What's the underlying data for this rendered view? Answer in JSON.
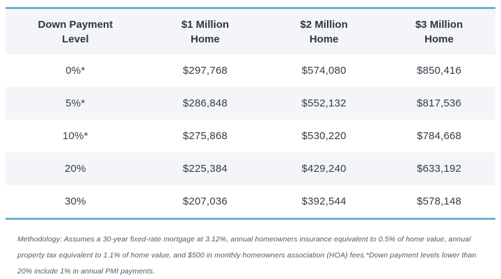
{
  "colors": {
    "accent_line": "#68b1d2",
    "header_background": "#f4f5f8",
    "stripe_background": "#f4f5f8",
    "body_text": "#343b47",
    "footnote_text": "#4e5866"
  },
  "table": {
    "headers": [
      {
        "line1": "Down Payment",
        "line2": "Level"
      },
      {
        "line1": "$1 Million",
        "line2": "Home"
      },
      {
        "line1": "$2 Million",
        "line2": "Home"
      },
      {
        "line1": "$3 Million",
        "line2": "Home"
      }
    ],
    "rows": [
      {
        "level": "0%*",
        "home_1m": "$297,768",
        "home_2m": "$574,080",
        "home_3m": "$850,416"
      },
      {
        "level": "5%*",
        "home_1m": "$286,848",
        "home_2m": "$552,132",
        "home_3m": "$817,536"
      },
      {
        "level": "10%*",
        "home_1m": "$275,868",
        "home_2m": "$530,220",
        "home_3m": "$784,668"
      },
      {
        "level": "20%",
        "home_1m": "$225,384",
        "home_2m": "$429,240",
        "home_3m": "$633,192"
      },
      {
        "level": "30%",
        "home_1m": "$207,036",
        "home_2m": "$392,544",
        "home_3m": "$578,148"
      }
    ]
  },
  "footnote": {
    "text": "Methodology: Assumes a 30-year fixed-rate mortgage at 3.12%, annual homeowners insurance equivalent to 0.5% of home value, annual property tax equivalent to 1.1% of home value, and $500 in monthly homeowners association (HOA) fees.*Down payment levels lower than 20% include 1% in annual PMI payments."
  },
  "chart_data": {
    "type": "table",
    "columns": [
      "Down Payment Level",
      "$1 Million Home",
      "$2 Million Home",
      "$3 Million Home"
    ],
    "rows": [
      [
        "0%*",
        "$297,768",
        "$574,080",
        "$850,416"
      ],
      [
        "5%*",
        "$286,848",
        "$552,132",
        "$817,536"
      ],
      [
        "10%*",
        "$275,868",
        "$530,220",
        "$784,668"
      ],
      [
        "20%",
        "$225,384",
        "$429,240",
        "$633,192"
      ],
      [
        "30%",
        "$207,036",
        "$392,544",
        "$578,148"
      ]
    ],
    "notes": "Methodology: Assumes a 30-year fixed-rate mortgage at 3.12%, annual homeowners insurance equivalent to 0.5% of home value, annual property tax equivalent to 1.1% of home value, and $500 in monthly homeowners association (HOA) fees.*Down payment levels lower than 20% include 1% in annual PMI payments.",
    "layout_hints": {
      "striped_rows": true,
      "accent_border_top_bottom": "#68b1d2",
      "header_row_shaded": true
    }
  }
}
